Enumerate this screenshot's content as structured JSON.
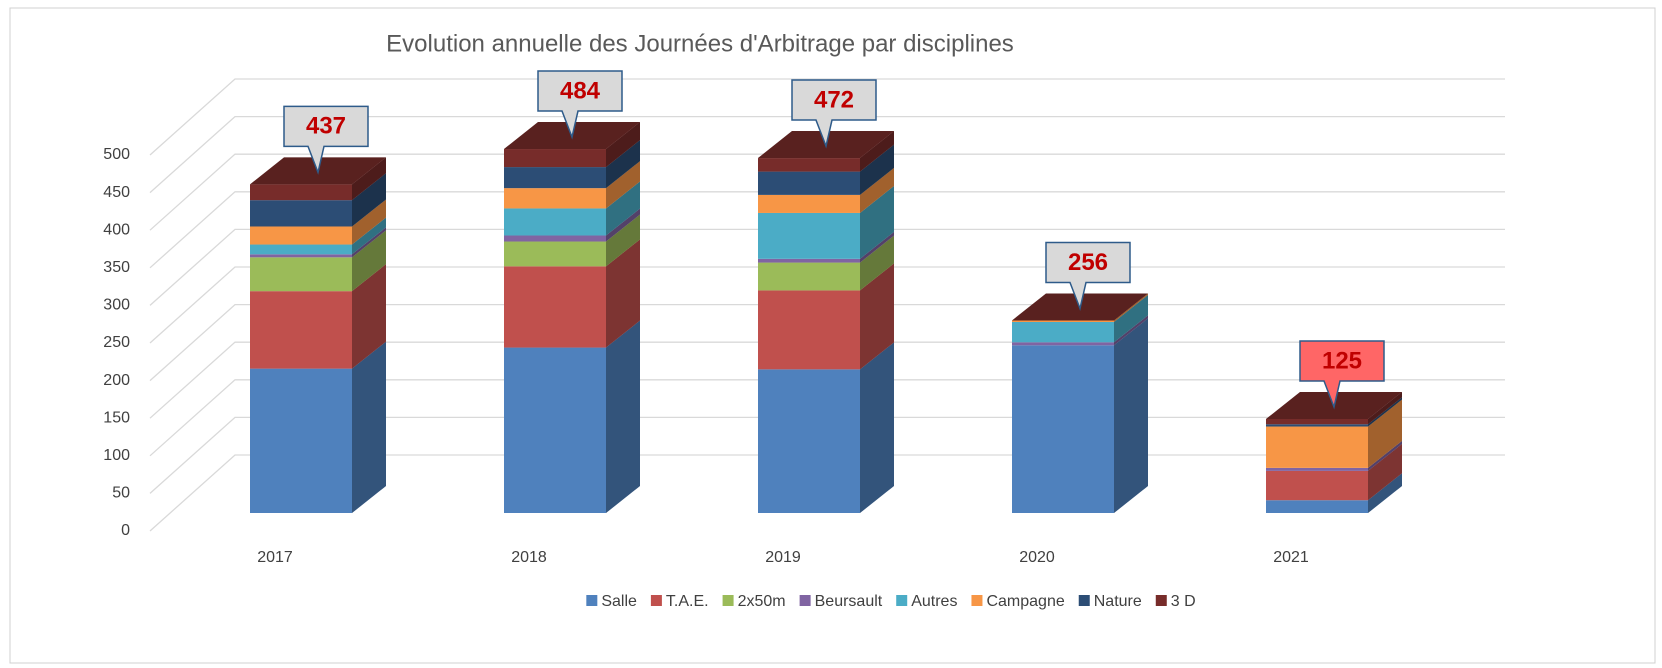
{
  "chart_data": {
    "type": "stacked_bar_3d",
    "title": "Evolution annuelle des Journées d'Arbitrage par disciplines",
    "categories": [
      "2017",
      "2018",
      "2019",
      "2020",
      "2021"
    ],
    "series": [
      {
        "name": "Salle",
        "color": "#4f81bd",
        "values": [
          192,
          220,
          191,
          223,
          17
        ]
      },
      {
        "name": "T.A.E.",
        "color": "#c0504d",
        "values": [
          103,
          108,
          105,
          0,
          39
        ]
      },
      {
        "name": "2x50m",
        "color": "#9bbb59",
        "values": [
          45,
          33,
          37,
          0,
          0
        ]
      },
      {
        "name": "Beursault",
        "color": "#8064a2",
        "values": [
          4,
          8,
          5,
          4,
          4
        ]
      },
      {
        "name": "Autres",
        "color": "#4bacc6",
        "values": [
          13,
          36,
          61,
          27,
          0
        ]
      },
      {
        "name": "Campagne",
        "color": "#f79646",
        "values": [
          24,
          27,
          24,
          2,
          55
        ]
      },
      {
        "name": "Nature",
        "color": "#2c4d75",
        "values": [
          35,
          28,
          31,
          0,
          3
        ]
      },
      {
        "name": "3 D",
        "color": "#772c2a",
        "values": [
          21,
          24,
          18,
          0,
          7
        ]
      }
    ],
    "totals": [
      437,
      484,
      472,
      256,
      125
    ],
    "total_label_colors": [
      "#d9d9d9",
      "#d9d9d9",
      "#d9d9d9",
      "#d9d9d9",
      "#ff6666"
    ],
    "ylim": [
      0,
      500
    ],
    "yticks": [
      0,
      50,
      100,
      150,
      200,
      250,
      300,
      350,
      400,
      450,
      500
    ],
    "grid": true,
    "legend": "bottom"
  }
}
